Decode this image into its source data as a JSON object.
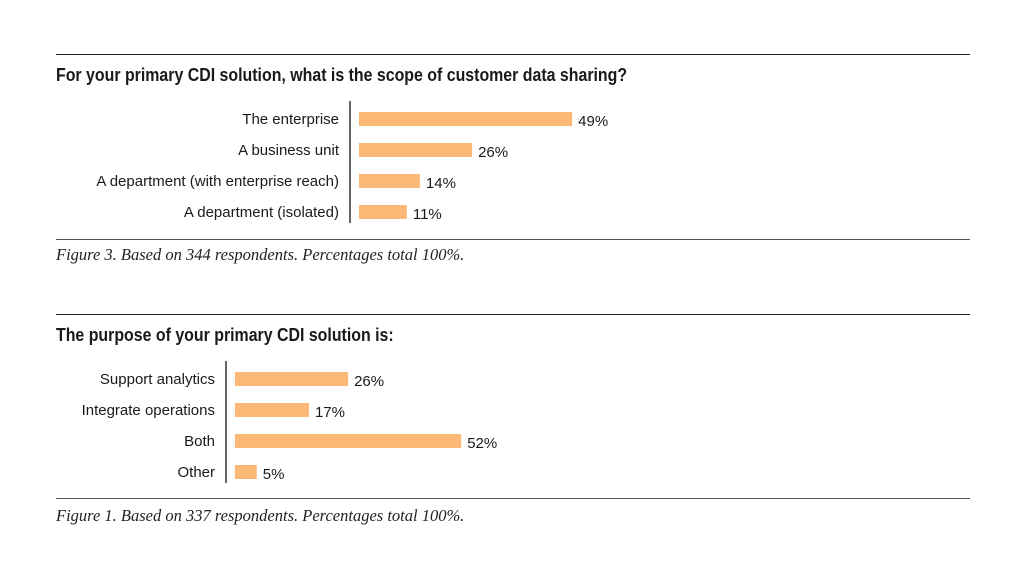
{
  "colors": {
    "bar": "#fcb876",
    "axis": "#333333",
    "text": "#1a1a1a"
  },
  "chart_data": [
    {
      "type": "bar",
      "orientation": "horizontal",
      "title": "For your primary CDI solution, what is the scope of customer data sharing?",
      "caption": "Figure 3. Based on 344 respondents. Percentages total 100%.",
      "categories": [
        "The enterprise",
        "A business unit",
        "A department (with enterprise reach)",
        "A department (isolated)"
      ],
      "values": [
        49,
        26,
        14,
        11
      ],
      "value_labels": [
        "49%",
        "26%",
        "14%",
        "11%"
      ],
      "unit": "%"
    },
    {
      "type": "bar",
      "orientation": "horizontal",
      "title": "The purpose of your primary CDI solution is:",
      "caption": "Figure 1. Based on 337 respondents. Percentages total 100%.",
      "categories": [
        "Support analytics",
        "Integrate operations",
        "Both",
        "Other"
      ],
      "values": [
        26,
        17,
        52,
        5
      ],
      "value_labels": [
        "26%",
        "17%",
        "52%",
        "5%"
      ],
      "unit": "%"
    }
  ]
}
